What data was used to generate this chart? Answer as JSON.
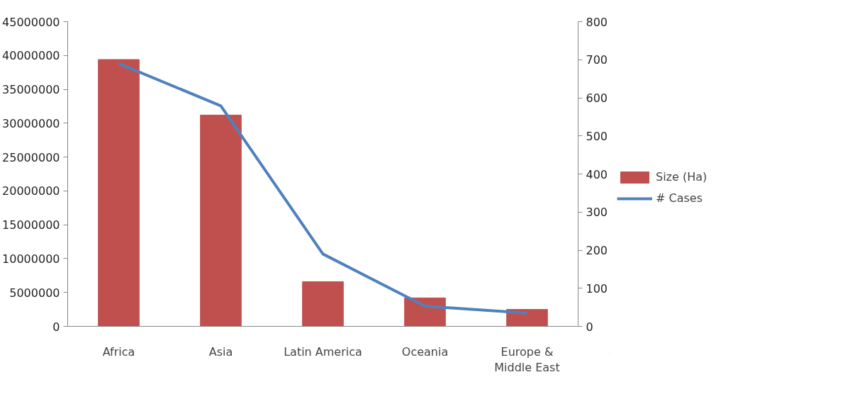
{
  "chart_data": {
    "type": "bar",
    "categories": [
      "Africa",
      "Asia",
      "Latin America",
      "Oceania",
      "Europe &\nMiddle East"
    ],
    "series": [
      {
        "name": "Size (Ha)",
        "color": "#c0504d",
        "values": [
          39400000,
          31200000,
          6600000,
          4200000,
          2500000
        ]
      },
      {
        "name": "# Cases",
        "type": "line",
        "axis": "y2",
        "color": "#4f81bd",
        "values": [
          690,
          579,
          190,
          53,
          35
        ]
      }
    ],
    "ylim": [
      0,
      45000000
    ],
    "yticks": [
      0,
      5000000,
      10000000,
      15000000,
      20000000,
      25000000,
      30000000,
      35000000,
      40000000,
      45000000
    ],
    "y2lim": [
      0,
      800
    ],
    "y2ticks": [
      0,
      100,
      200,
      300,
      400,
      500,
      600,
      700,
      800
    ],
    "grid": false,
    "legend": "right",
    "marker": "none"
  }
}
